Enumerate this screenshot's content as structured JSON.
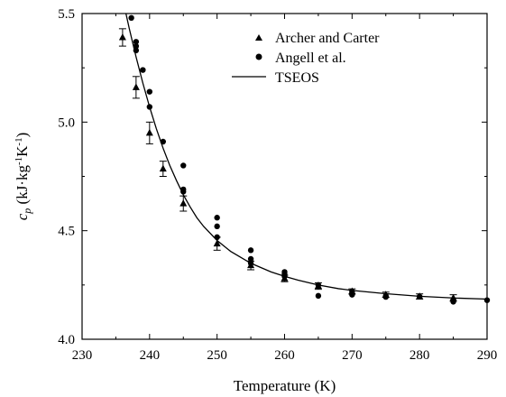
{
  "chart_data": {
    "type": "scatter",
    "xlabel": "Temperature (K)",
    "ylabel": {
      "symbol": "c",
      "subscript": "p",
      "unit_open": " (kJ·kg",
      "exp1": "-1",
      "unit_mid": "K",
      "exp2": "-1",
      "unit_close": ")"
    },
    "xlim": [
      230,
      290
    ],
    "ylim": [
      4.0,
      5.5
    ],
    "xticks": [
      230,
      240,
      250,
      260,
      270,
      280,
      290
    ],
    "xtick_labels": [
      "230",
      "240",
      "250",
      "260",
      "270",
      "280",
      "290"
    ],
    "yticks": [
      4.0,
      4.5,
      5.0,
      5.5
    ],
    "ytick_labels": [
      "4.0",
      "4.5",
      "5.0",
      "5.5"
    ],
    "grid": false,
    "legend_position": "top-right",
    "series": [
      {
        "name": "Archer and Carter",
        "marker": "triangle",
        "points": [
          {
            "x": 236.0,
            "y": 5.39,
            "err": 0.04
          },
          {
            "x": 238.0,
            "y": 5.16,
            "err": 0.05
          },
          {
            "x": 240.0,
            "y": 4.95,
            "err": 0.05
          },
          {
            "x": 242.0,
            "y": 4.785,
            "err": 0.035
          },
          {
            "x": 245.0,
            "y": 4.625,
            "err": 0.035
          },
          {
            "x": 250.0,
            "y": 4.44,
            "err": 0.03
          },
          {
            "x": 255.0,
            "y": 4.34,
            "err": 0.02
          },
          {
            "x": 260.0,
            "y": 4.28,
            "err": 0.015
          },
          {
            "x": 265.0,
            "y": 4.245,
            "err": 0.015
          },
          {
            "x": 270.0,
            "y": 4.22,
            "err": 0.012
          },
          {
            "x": 275.0,
            "y": 4.205,
            "err": 0.012
          },
          {
            "x": 280.0,
            "y": 4.197,
            "err": 0.012
          },
          {
            "x": 285.0,
            "y": 4.19,
            "err": 0.015
          }
        ]
      },
      {
        "name": "Angell et al.",
        "marker": "circle",
        "points": [
          {
            "x": 237.3,
            "y": 5.48
          },
          {
            "x": 238.0,
            "y": 5.37
          },
          {
            "x": 238.0,
            "y": 5.35
          },
          {
            "x": 238.0,
            "y": 5.33
          },
          {
            "x": 239.0,
            "y": 5.24
          },
          {
            "x": 240.0,
            "y": 5.14
          },
          {
            "x": 240.0,
            "y": 5.07
          },
          {
            "x": 242.0,
            "y": 4.91
          },
          {
            "x": 245.0,
            "y": 4.8
          },
          {
            "x": 245.0,
            "y": 4.69
          },
          {
            "x": 245.0,
            "y": 4.68
          },
          {
            "x": 250.0,
            "y": 4.56
          },
          {
            "x": 250.0,
            "y": 4.52
          },
          {
            "x": 250.0,
            "y": 4.47
          },
          {
            "x": 255.0,
            "y": 4.41
          },
          {
            "x": 255.0,
            "y": 4.37
          },
          {
            "x": 255.0,
            "y": 4.35
          },
          {
            "x": 260.0,
            "y": 4.31
          },
          {
            "x": 260.0,
            "y": 4.3
          },
          {
            "x": 260.0,
            "y": 4.29
          },
          {
            "x": 265.0,
            "y": 4.25
          },
          {
            "x": 265.0,
            "y": 4.2
          },
          {
            "x": 270.0,
            "y": 4.22
          },
          {
            "x": 270.0,
            "y": 4.205
          },
          {
            "x": 275.0,
            "y": 4.2
          },
          {
            "x": 275.0,
            "y": 4.195
          },
          {
            "x": 280.0,
            "y": 4.197
          },
          {
            "x": 285.0,
            "y": 4.18
          },
          {
            "x": 285.0,
            "y": 4.173
          },
          {
            "x": 290.0,
            "y": 4.18
          }
        ]
      },
      {
        "name": "TSEOS",
        "marker": "line",
        "points": [
          {
            "x": 236.5,
            "y": 5.5
          },
          {
            "x": 237.0,
            "y": 5.43
          },
          {
            "x": 238.0,
            "y": 5.3
          },
          {
            "x": 239.0,
            "y": 5.18
          },
          {
            "x": 240.0,
            "y": 5.07
          },
          {
            "x": 241.0,
            "y": 4.97
          },
          {
            "x": 242.0,
            "y": 4.88
          },
          {
            "x": 243.0,
            "y": 4.8
          },
          {
            "x": 244.0,
            "y": 4.73
          },
          {
            "x": 245.0,
            "y": 4.665
          },
          {
            "x": 246.0,
            "y": 4.61
          },
          {
            "x": 247.0,
            "y": 4.56
          },
          {
            "x": 248.0,
            "y": 4.52
          },
          {
            "x": 250.0,
            "y": 4.455
          },
          {
            "x": 252.0,
            "y": 4.405
          },
          {
            "x": 255.0,
            "y": 4.35
          },
          {
            "x": 258.0,
            "y": 4.31
          },
          {
            "x": 260.0,
            "y": 4.29
          },
          {
            "x": 262.0,
            "y": 4.272
          },
          {
            "x": 265.0,
            "y": 4.25
          },
          {
            "x": 268.0,
            "y": 4.233
          },
          {
            "x": 270.0,
            "y": 4.225
          },
          {
            "x": 275.0,
            "y": 4.21
          },
          {
            "x": 280.0,
            "y": 4.198
          },
          {
            "x": 285.0,
            "y": 4.19
          },
          {
            "x": 290.0,
            "y": 4.185
          }
        ]
      }
    ]
  }
}
